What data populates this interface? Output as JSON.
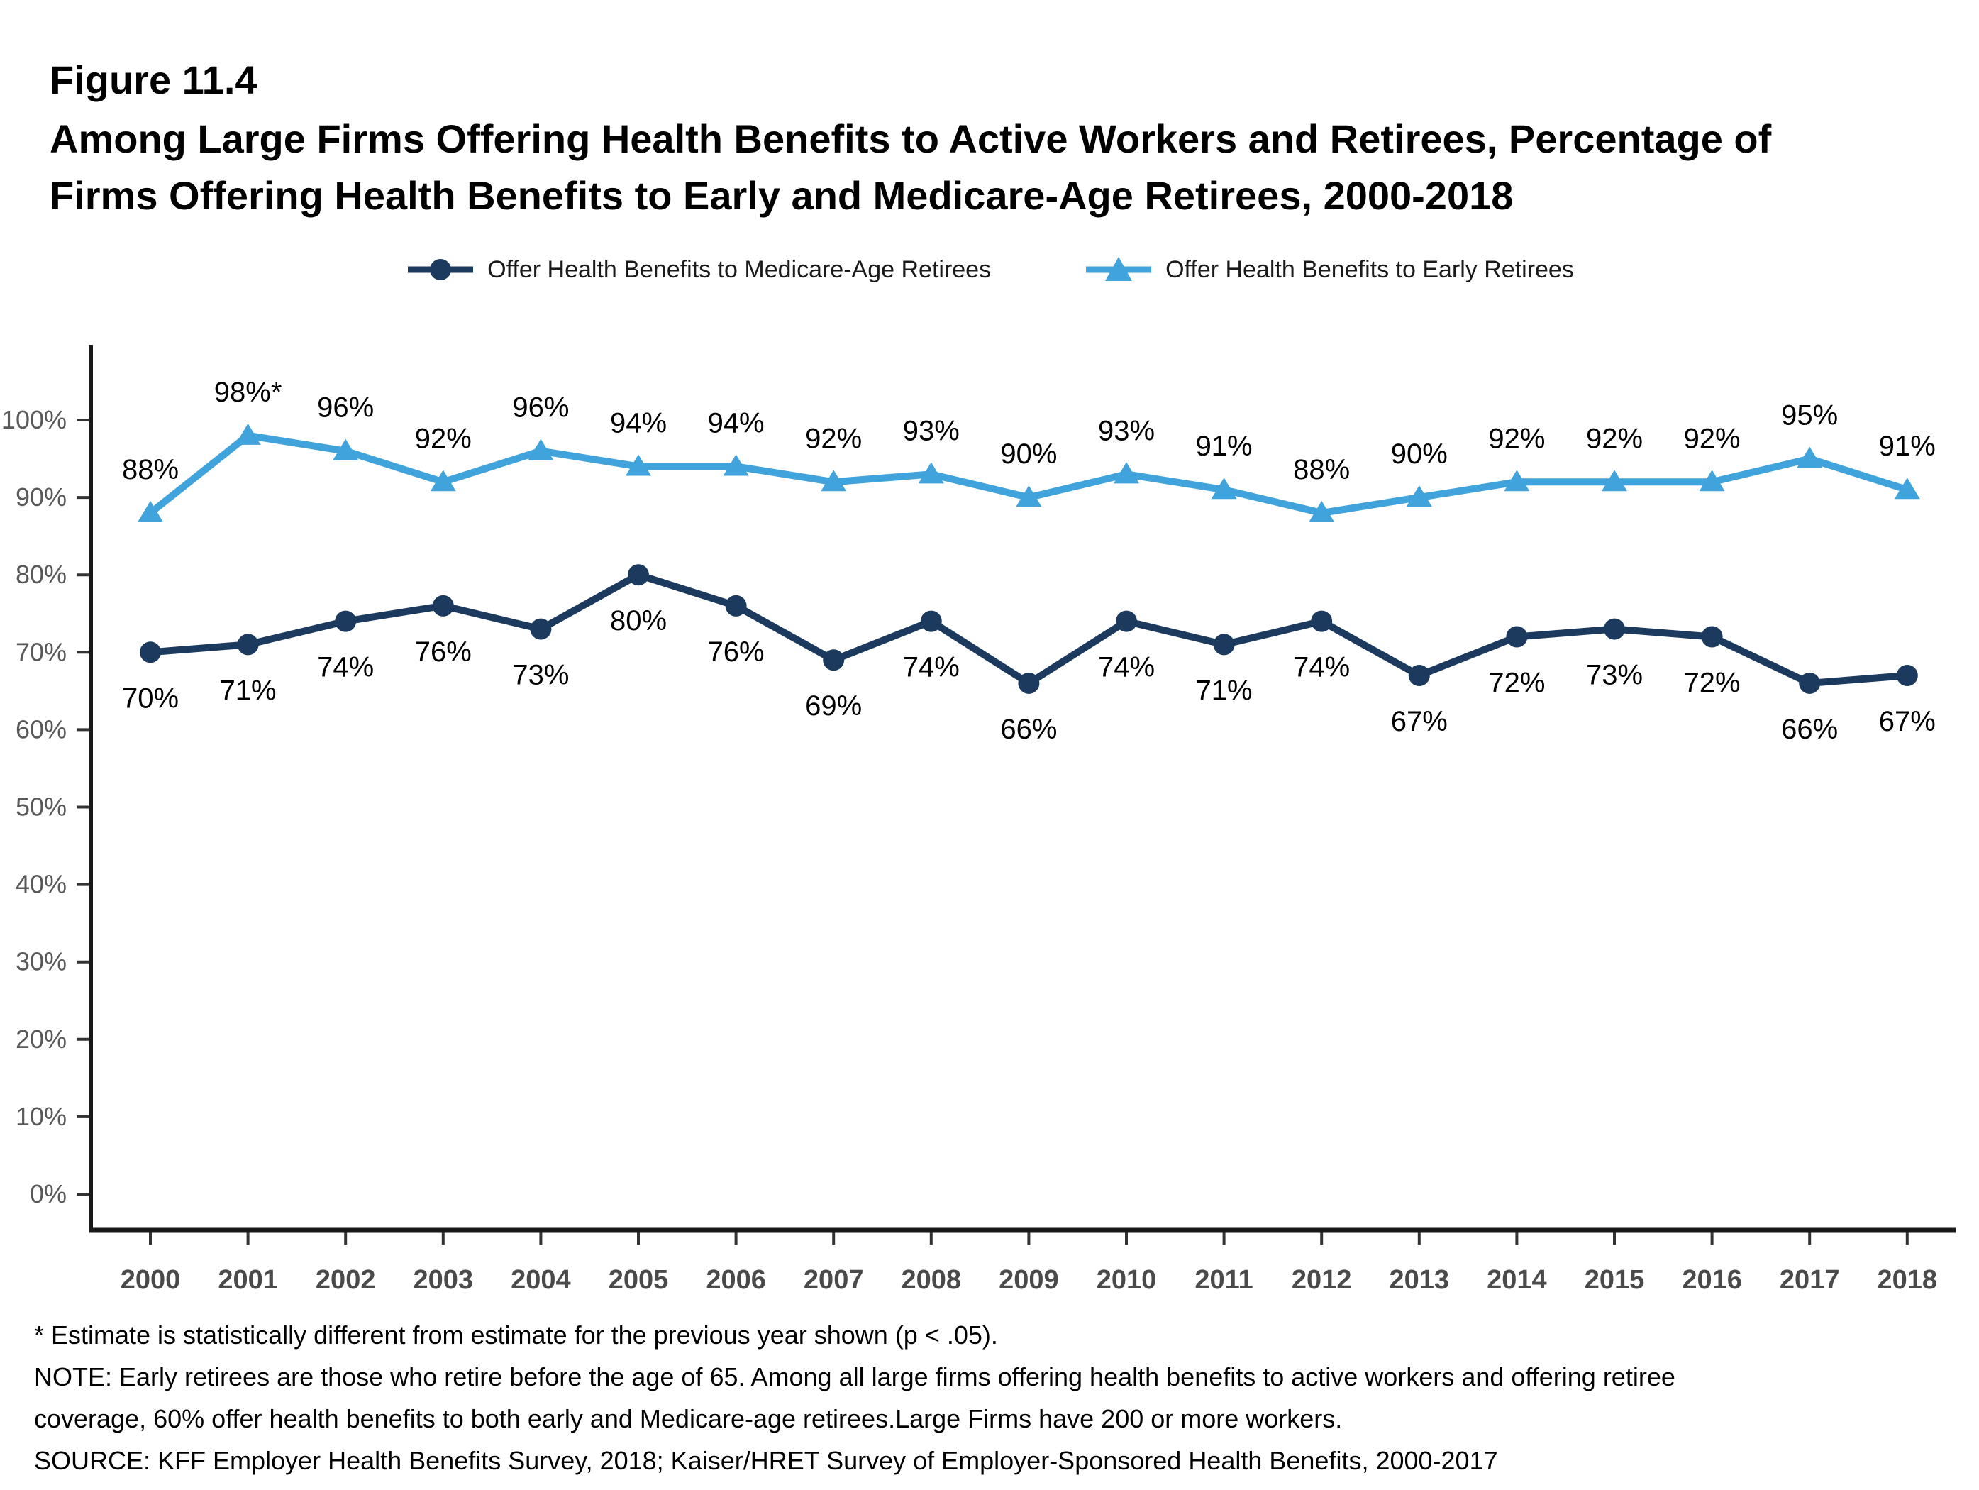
{
  "page": {
    "background": "#ffffff"
  },
  "title": {
    "figure_label": "Figure 11.4",
    "lines": [
      "Among Large Firms Offering Health Benefits to Active Workers and Retirees, Percentage of",
      "Firms Offering Health Benefits to Early and Medicare-Age Retirees, 2000-2018"
    ]
  },
  "chart_data": {
    "type": "line",
    "x": [
      2000,
      2001,
      2002,
      2003,
      2004,
      2005,
      2006,
      2007,
      2008,
      2009,
      2010,
      2011,
      2012,
      2013,
      2014,
      2015,
      2016,
      2017,
      2018
    ],
    "series": [
      {
        "name": "Offer Health Benefits to Medicare-Age Retirees",
        "marker": "circle",
        "color": "#1c3a5e",
        "label_side": "below",
        "values": [
          70,
          71,
          74,
          76,
          73,
          80,
          76,
          69,
          74,
          66,
          74,
          71,
          74,
          67,
          72,
          73,
          72,
          66,
          67
        ],
        "point_labels": [
          "70%",
          "71%",
          "74%",
          "76%",
          "73%",
          "80%",
          "76%",
          "69%",
          "74%",
          "66%",
          "74%",
          "71%",
          "74%",
          "67%",
          "72%",
          "73%",
          "72%",
          "66%",
          "67%"
        ]
      },
      {
        "name": "Offer Health Benefits to Early Retirees",
        "marker": "triangle",
        "color": "#41a3dc",
        "label_side": "above",
        "values": [
          88,
          98,
          96,
          92,
          96,
          94,
          94,
          92,
          93,
          90,
          93,
          91,
          88,
          90,
          92,
          92,
          92,
          95,
          91
        ],
        "point_labels": [
          "88%",
          "98%*",
          "96%",
          "92%",
          "96%",
          "94%",
          "94%",
          "92%",
          "93%",
          "90%",
          "93%",
          "91%",
          "88%",
          "90%",
          "92%",
          "92%",
          "92%",
          "95%",
          "91%"
        ]
      }
    ],
    "ylim": [
      0,
      100
    ],
    "yticks": [
      0,
      10,
      20,
      30,
      40,
      50,
      60,
      70,
      80,
      90,
      100
    ],
    "ytick_suffix": "%",
    "grid": false,
    "legend_position": "top",
    "axis_color": "#1a1a1a",
    "tick_color": "#333333",
    "ytick_label_color": "#595959",
    "xtick_label_color": "#4a4a4a",
    "data_label_color": "#000000"
  },
  "footnotes": {
    "lines": [
      "* Estimate is statistically different from estimate for the previous year shown (p < .05).",
      "NOTE: Early retirees are those who retire before the age of 65. Among all large firms offering health benefits to active workers and offering retiree",
      "coverage, 60% offer health benefits to both early and Medicare-age retirees.Large Firms have 200 or more workers.",
      "SOURCE: KFF Employer Health Benefits Survey, 2018; Kaiser/HRET Survey of Employer-Sponsored Health Benefits, 2000-2017"
    ]
  }
}
